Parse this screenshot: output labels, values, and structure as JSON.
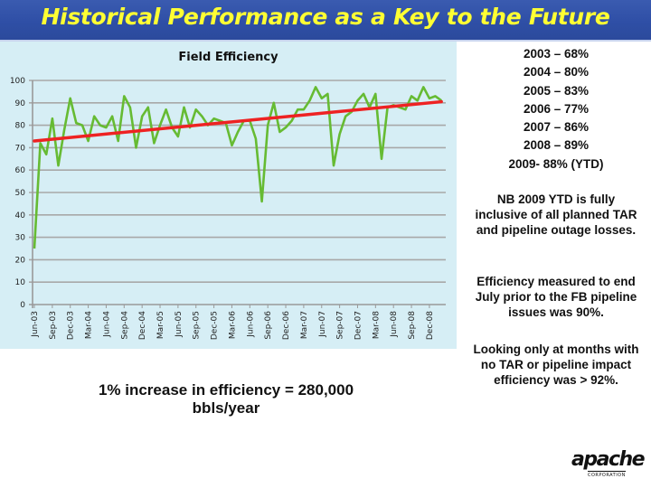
{
  "header": {
    "title": "Historical Performance as a Key to the Future"
  },
  "chart_data": {
    "type": "line",
    "title": "Field Efficiency",
    "xlabel": "",
    "ylabel": "",
    "ylim": [
      0,
      100
    ],
    "yticks": [
      0,
      10,
      20,
      30,
      40,
      50,
      60,
      70,
      80,
      90,
      100
    ],
    "grid": true,
    "legend": "none",
    "xtick_labels": [
      "Jun-03",
      "Sep-03",
      "Dec-03",
      "Mar-04",
      "Jun-04",
      "Sep-04",
      "Dec-04",
      "Mar-05",
      "Jun-05",
      "Sep-05",
      "Dec-05",
      "Mar-06",
      "Jun-06",
      "Sep-06",
      "Dec-06",
      "Mar-07",
      "Jun-07",
      "Sep-07",
      "Dec-07",
      "Mar-08",
      "Jun-08",
      "Sep-08",
      "Dec-08"
    ],
    "x_start": "Jun-03",
    "x_step": "month",
    "series": [
      {
        "name": "Field Efficiency",
        "color": "#66bb33",
        "values": [
          25,
          72,
          67,
          83,
          62,
          78,
          92,
          81,
          80,
          73,
          84,
          80,
          79,
          84,
          73,
          93,
          88,
          70,
          84,
          88,
          72,
          80,
          87,
          79,
          75,
          88,
          79,
          87,
          84,
          80,
          83,
          82,
          81,
          71,
          77,
          82,
          82,
          74,
          46,
          80,
          90,
          77,
          79,
          82,
          87,
          87,
          91,
          97,
          92,
          94,
          62,
          76,
          84,
          86,
          91,
          94,
          88,
          94,
          65,
          88,
          89,
          88,
          87,
          93,
          91,
          97,
          92,
          93,
          91
        ]
      },
      {
        "name": "Trend",
        "color": "#ee2222",
        "type": "linear-trendline",
        "start": 73,
        "end": 90.5
      }
    ]
  },
  "sidebar": {
    "years": [
      "2003 – 68%",
      "2004 – 80%",
      "2005 – 83%",
      "2006 – 77%",
      "2007 – 86%",
      "2008 – 89%",
      "2009- 88% (YTD)"
    ],
    "notes": [
      "NB 2009 YTD is fully inclusive of all planned TAR and pipeline outage losses.",
      "Efficiency measured to end July prior to the FB pipeline issues was 90%.",
      "Looking only at months with no TAR or pipeline impact efficiency was > 92%."
    ]
  },
  "footer": {
    "summary": "1% increase in efficiency = 280,000 bbls/year"
  },
  "logo": {
    "name": "apache",
    "text": "apache",
    "subtext": "CORPORATION"
  },
  "colors": {
    "banner": "#2f4fa6",
    "title_text": "#ffff33",
    "chart_bg": "#d6eef5",
    "grid": "#a8a8a8"
  }
}
